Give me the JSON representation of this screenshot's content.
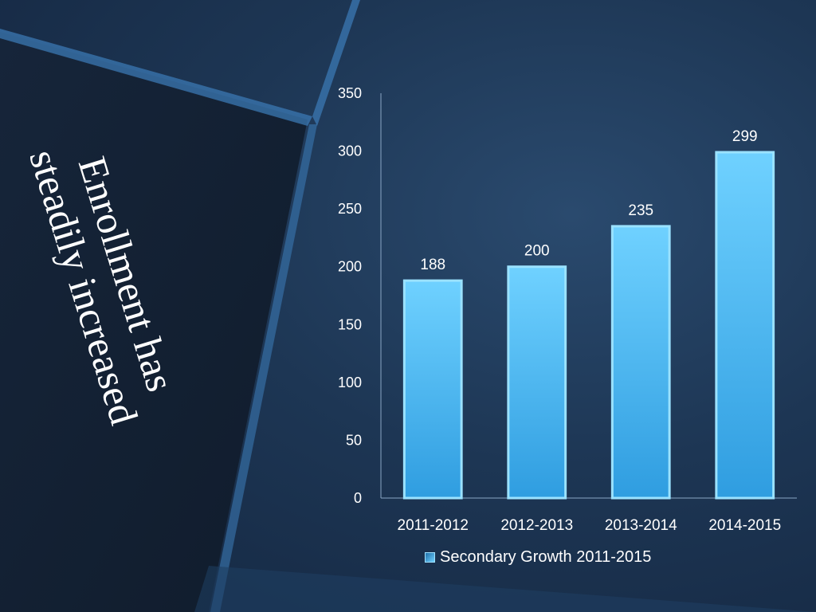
{
  "slide": {
    "title_lines": [
      "Enrollment has",
      "steadily increased"
    ]
  },
  "colors": {
    "bar_top": "#6fd1ff",
    "bar_bottom": "#2f9de0",
    "bar_edge": "#9be2ff",
    "text": "#ffffff",
    "axis": "#8aa6c4"
  },
  "chart_data": {
    "type": "bar",
    "categories": [
      "2011-2012",
      "2012-2013",
      "2013-2014",
      "2014-2015"
    ],
    "series": [
      {
        "name": "Secondary Growth 2011-2015",
        "values": [
          188,
          200,
          235,
          299
        ]
      }
    ],
    "title": "",
    "xlabel": "",
    "ylabel": "",
    "ylim": [
      0,
      350
    ],
    "yticks": [
      0,
      50,
      100,
      150,
      200,
      250,
      300,
      350
    ],
    "data_labels": [
      "188",
      "200",
      "235",
      "299"
    ],
    "grid": false,
    "legend": "bottom"
  }
}
